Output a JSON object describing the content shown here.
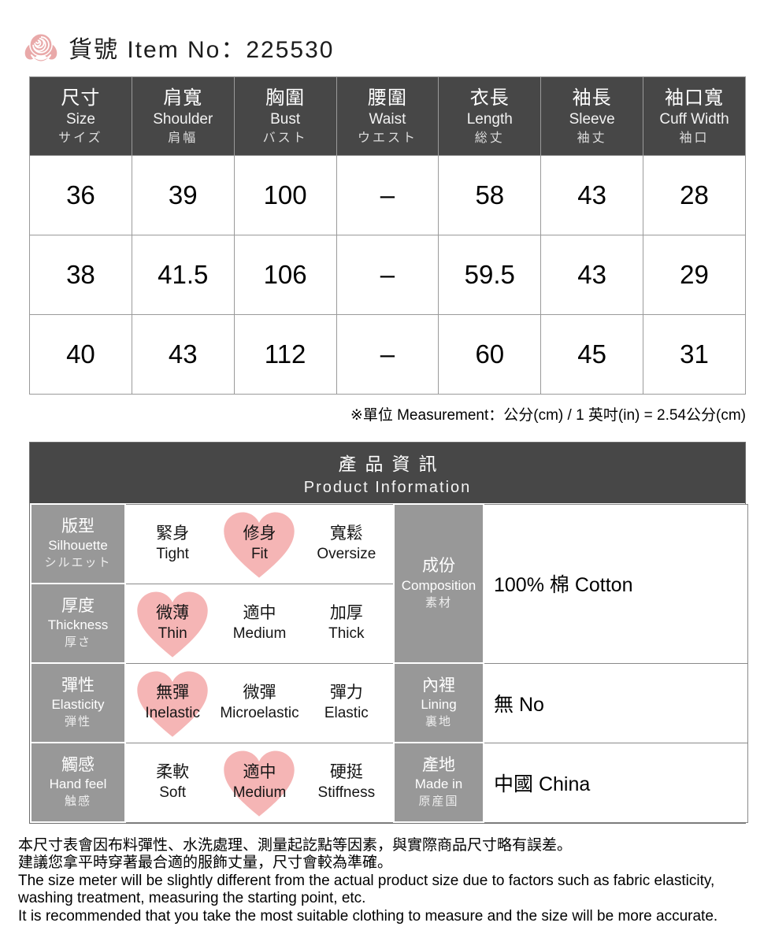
{
  "header": {
    "item_label": "貨號 Item No：225530",
    "rose_icon": "rose-icon"
  },
  "size_table": {
    "columns": [
      {
        "zh": "尺寸",
        "en": "Size",
        "ja": "サイズ"
      },
      {
        "zh": "肩寬",
        "en": "Shoulder",
        "ja": "肩幅"
      },
      {
        "zh": "胸圍",
        "en": "Bust",
        "ja": "バスト"
      },
      {
        "zh": "腰圍",
        "en": "Waist",
        "ja": "ウエスト"
      },
      {
        "zh": "衣長",
        "en": "Length",
        "ja": "総丈"
      },
      {
        "zh": "袖長",
        "en": "Sleeve",
        "ja": "袖丈"
      },
      {
        "zh": "袖口寬",
        "en": "Cuff Width",
        "ja": "袖口"
      }
    ],
    "rows": [
      [
        "36",
        "39",
        "100",
        "–",
        "58",
        "43",
        "28"
      ],
      [
        "38",
        "41.5",
        "106",
        "–",
        "59.5",
        "43",
        "29"
      ],
      [
        "40",
        "43",
        "112",
        "–",
        "60",
        "45",
        "31"
      ]
    ],
    "note": "※單位 Measurement：公分(cm) / 1 英吋(in) = 2.54公分(cm)"
  },
  "product_info": {
    "title_zh": "產品資訊",
    "title_en": "Product Information",
    "rows": [
      {
        "label": {
          "zh": "版型",
          "en": "Silhouette",
          "ja": "シルエット"
        },
        "options": [
          {
            "zh": "緊身",
            "en": "Tight",
            "selected": false
          },
          {
            "zh": "修身",
            "en": "Fit",
            "selected": true
          },
          {
            "zh": "寬鬆",
            "en": "Oversize",
            "selected": false
          }
        ]
      },
      {
        "label": {
          "zh": "厚度",
          "en": "Thickness",
          "ja": "厚さ"
        },
        "options": [
          {
            "zh": "微薄",
            "en": "Thin",
            "selected": true
          },
          {
            "zh": "適中",
            "en": "Medium",
            "selected": false
          },
          {
            "zh": "加厚",
            "en": "Thick",
            "selected": false
          }
        ]
      },
      {
        "label": {
          "zh": "彈性",
          "en": "Elasticity",
          "ja": "弾性"
        },
        "options": [
          {
            "zh": "無彈",
            "en": "Inelastic",
            "selected": true
          },
          {
            "zh": "微彈",
            "en": "Microelastic",
            "selected": false
          },
          {
            "zh": "彈力",
            "en": "Elastic",
            "selected": false
          }
        ]
      },
      {
        "label": {
          "zh": "觸感",
          "en": "Hand feel",
          "ja": "触感"
        },
        "options": [
          {
            "zh": "柔軟",
            "en": "Soft",
            "selected": false
          },
          {
            "zh": "適中",
            "en": "Medium",
            "selected": true
          },
          {
            "zh": "硬挺",
            "en": "Stiffness",
            "selected": false
          }
        ]
      }
    ],
    "details": [
      {
        "label": {
          "zh": "成份",
          "en": "Composition",
          "ja": "素材"
        },
        "value": "100% 棉 Cotton"
      },
      {
        "label": {
          "zh": "內裡",
          "en": "Lining",
          "ja": "裏地"
        },
        "value": "無 No"
      },
      {
        "label": {
          "zh": "產地",
          "en": "Made in",
          "ja": "原産国"
        },
        "value": "中國 China"
      }
    ]
  },
  "footer": {
    "lines": [
      "本尺寸表會因布料彈性、水洗處理、測量起訖點等因素，與實際商品尺寸略有誤差。",
      "建議您拿平時穿著最合適的服飾丈量，尺寸會較為準確。",
      "The size meter will be slightly different from the actual product size due to factors such as fabric elasticity,",
      "washing treatment, measuring the starting point, etc.",
      "It is recommended that you take the most suitable clothing to measure and the size will be more accurate."
    ]
  },
  "colors": {
    "header_dark": "#474747",
    "label_gray": "#989898",
    "heart_pink": "#f5b5b5",
    "rose_pink": "#e9a9a9",
    "border_gray": "#9a9a9a"
  }
}
